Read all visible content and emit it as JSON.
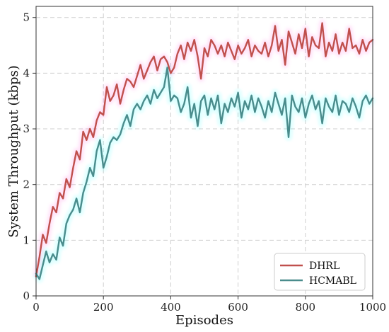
{
  "chart_data": {
    "type": "line",
    "xlabel": "Episodes",
    "ylabel": "System Throughput (kbps)",
    "xlim": [
      0,
      1000
    ],
    "ylim": [
      0,
      5.2
    ],
    "xticks": [
      "0",
      "200",
      "400",
      "600",
      "800",
      "1000"
    ],
    "yticks": [
      "0",
      "1",
      "2",
      "3",
      "4",
      "5"
    ],
    "grid": true,
    "legend_position": "bottom-right",
    "series": [
      {
        "name": "DHRL",
        "color": "#c0504d",
        "shadow_color": "#ff66d9",
        "x": [
          0,
          10,
          20,
          30,
          40,
          50,
          60,
          70,
          80,
          90,
          100,
          110,
          120,
          130,
          140,
          150,
          160,
          170,
          180,
          190,
          200,
          210,
          220,
          230,
          240,
          250,
          260,
          270,
          280,
          290,
          300,
          310,
          320,
          330,
          340,
          350,
          360,
          370,
          380,
          390,
          400,
          410,
          420,
          430,
          440,
          450,
          460,
          470,
          480,
          490,
          500,
          510,
          520,
          530,
          540,
          550,
          560,
          570,
          580,
          590,
          600,
          610,
          620,
          630,
          640,
          650,
          660,
          670,
          680,
          690,
          700,
          710,
          720,
          730,
          740,
          750,
          760,
          770,
          780,
          790,
          800,
          810,
          820,
          830,
          840,
          850,
          860,
          870,
          880,
          890,
          900,
          910,
          920,
          930,
          940,
          950,
          960,
          970,
          980,
          990,
          1000
        ],
        "values": [
          0.35,
          0.7,
          1.1,
          0.95,
          1.3,
          1.6,
          1.5,
          1.85,
          1.75,
          2.1,
          1.95,
          2.3,
          2.6,
          2.45,
          2.95,
          2.8,
          3.0,
          2.85,
          3.15,
          3.3,
          3.25,
          3.75,
          3.5,
          3.6,
          3.8,
          3.45,
          3.7,
          3.9,
          3.85,
          3.75,
          3.95,
          4.15,
          3.9,
          4.05,
          4.2,
          4.3,
          4.05,
          4.25,
          4.3,
          4.2,
          4.0,
          4.1,
          4.35,
          4.5,
          4.25,
          4.55,
          4.4,
          4.6,
          4.3,
          3.9,
          4.45,
          4.3,
          4.6,
          4.5,
          4.35,
          4.5,
          4.3,
          4.55,
          4.4,
          4.25,
          4.5,
          4.35,
          4.45,
          4.6,
          4.3,
          4.5,
          4.4,
          4.35,
          4.55,
          4.3,
          4.5,
          4.85,
          4.4,
          4.6,
          4.15,
          4.75,
          4.55,
          4.35,
          4.7,
          4.45,
          4.8,
          4.3,
          4.65,
          4.5,
          4.45,
          4.9,
          4.3,
          4.55,
          4.4,
          4.7,
          4.35,
          4.55,
          4.4,
          4.8,
          4.45,
          4.5,
          4.35,
          4.6,
          4.4,
          4.55,
          4.6
        ]
      },
      {
        "name": "HCMABL",
        "color": "#4a8c8c",
        "shadow_color": "#33ffff",
        "x": [
          0,
          10,
          20,
          30,
          40,
          50,
          60,
          70,
          80,
          90,
          100,
          110,
          120,
          130,
          140,
          150,
          160,
          170,
          180,
          190,
          200,
          210,
          220,
          230,
          240,
          250,
          260,
          270,
          280,
          290,
          300,
          310,
          320,
          330,
          340,
          350,
          360,
          370,
          380,
          390,
          400,
          410,
          420,
          430,
          440,
          450,
          460,
          470,
          480,
          490,
          500,
          510,
          520,
          530,
          540,
          550,
          560,
          570,
          580,
          590,
          600,
          610,
          620,
          630,
          640,
          650,
          660,
          670,
          680,
          690,
          700,
          710,
          720,
          730,
          740,
          750,
          760,
          770,
          780,
          790,
          800,
          810,
          820,
          830,
          840,
          850,
          860,
          870,
          880,
          890,
          900,
          910,
          920,
          930,
          940,
          950,
          960,
          970,
          980,
          990,
          1000
        ],
        "values": [
          0.4,
          0.3,
          0.55,
          0.8,
          0.6,
          0.75,
          0.65,
          1.05,
          0.9,
          1.3,
          1.45,
          1.55,
          1.75,
          1.5,
          1.85,
          2.05,
          2.3,
          2.15,
          2.6,
          2.8,
          2.3,
          2.5,
          2.75,
          2.85,
          2.8,
          2.9,
          3.1,
          3.25,
          3.05,
          3.35,
          3.45,
          3.35,
          3.5,
          3.6,
          3.45,
          3.7,
          3.55,
          3.65,
          3.75,
          4.1,
          3.5,
          3.6,
          3.55,
          3.3,
          3.45,
          3.75,
          3.2,
          3.45,
          3.05,
          3.5,
          3.6,
          3.25,
          3.55,
          3.35,
          3.6,
          3.1,
          3.45,
          3.3,
          3.55,
          3.4,
          3.65,
          3.2,
          3.5,
          3.35,
          3.6,
          3.3,
          3.55,
          3.4,
          3.2,
          3.5,
          3.3,
          3.65,
          3.45,
          3.25,
          3.55,
          2.85,
          3.6,
          3.4,
          3.3,
          3.55,
          3.2,
          3.45,
          3.6,
          3.35,
          3.5,
          3.1,
          3.55,
          3.4,
          3.3,
          3.6,
          3.25,
          3.5,
          3.45,
          3.3,
          3.55,
          3.4,
          3.2,
          3.5,
          3.6,
          3.45,
          3.55
        ]
      }
    ]
  }
}
